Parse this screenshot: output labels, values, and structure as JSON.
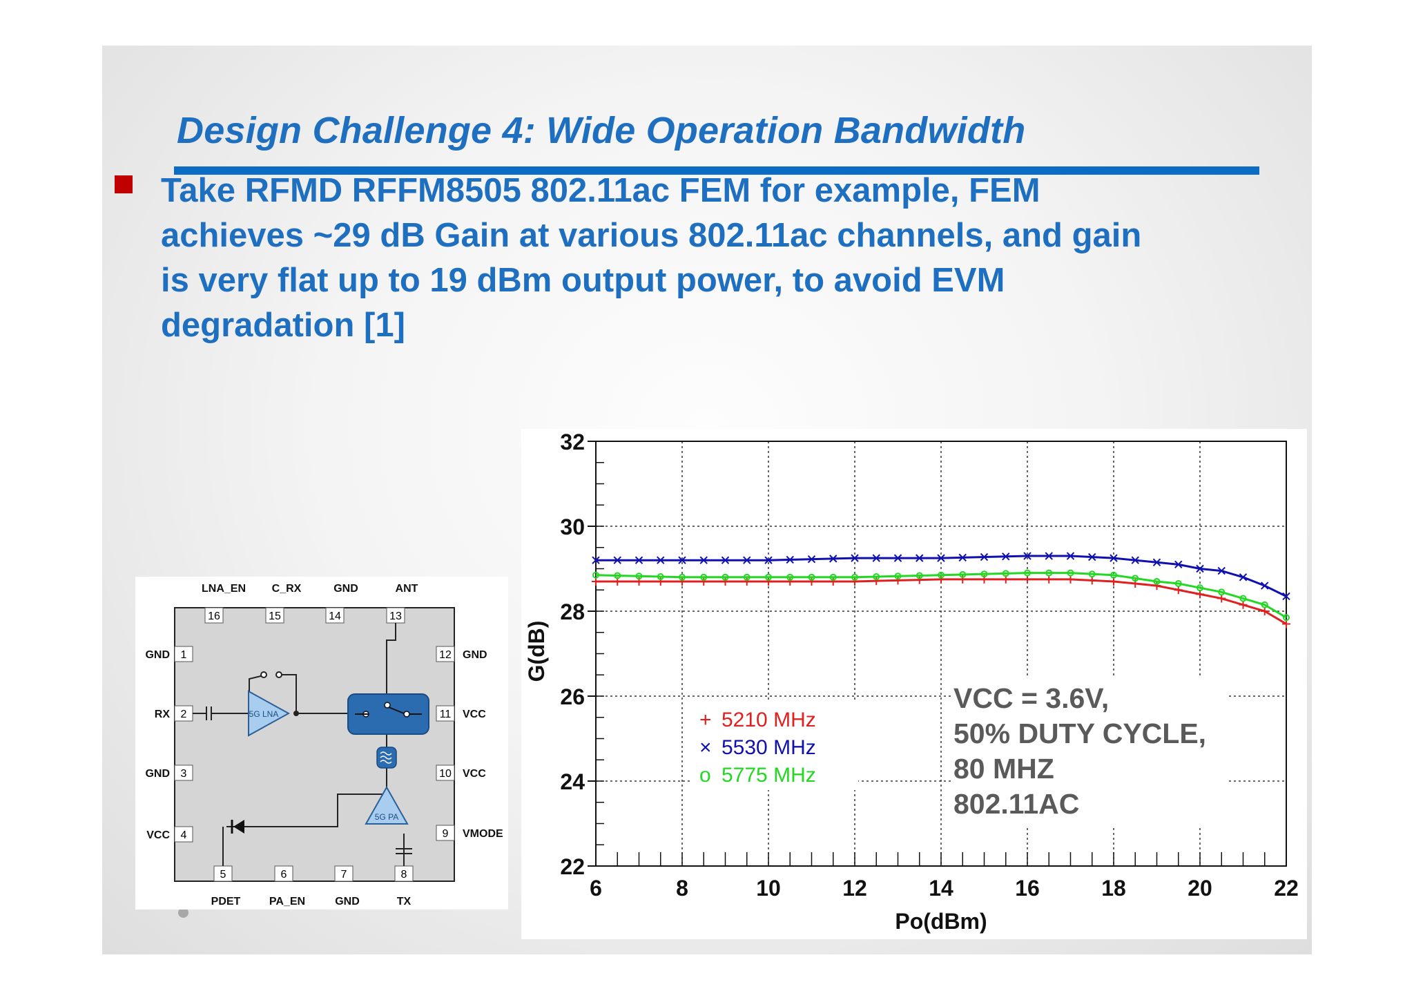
{
  "slide": {
    "title": "Design Challenge 4: Wide Operation Bandwidth",
    "bullet": "Take RFMD RFFM8505 802.11ac FEM for example, FEM achieves ~29 dB Gain at various 802.11ac channels, and gain is very flat up to 19 dBm output power, to avoid EVM degradation [1]"
  },
  "pinout": {
    "top_labels": [
      "LNA_EN",
      "C_RX",
      "GND",
      "ANT"
    ],
    "top_pins": [
      "16",
      "15",
      "14",
      "13"
    ],
    "left_labels": [
      "GND",
      "RX",
      "GND",
      "VCC"
    ],
    "left_pins": [
      "1",
      "2",
      "3",
      "4"
    ],
    "right_labels": [
      "GND",
      "VCC",
      "VCC",
      "VMODE"
    ],
    "right_pins": [
      "12",
      "11",
      "10",
      "9"
    ],
    "bottom_labels": [
      "PDET",
      "PA_EN",
      "GND",
      "TX"
    ],
    "bottom_pins": [
      "5",
      "6",
      "7",
      "8"
    ],
    "lna_label": "5G LNA",
    "pa_label": "5G PA",
    "colors": {
      "body": "#d5d5d5",
      "block": "#2b6cb0",
      "amp": "#a9cdee"
    }
  },
  "chart_data": {
    "type": "line",
    "xlabel": "Po(dBm)",
    "ylabel": "G(dB)",
    "xlim": [
      6,
      22
    ],
    "ylim": [
      22,
      32
    ],
    "xticks": [
      6,
      8,
      10,
      12,
      14,
      16,
      18,
      20,
      22
    ],
    "yticks": [
      22,
      24,
      26,
      28,
      30,
      32
    ],
    "grid": "dotted",
    "legend_position": "center-left",
    "annotation": [
      "VCC = 3.6V,",
      "50% DUTY CYCLE,",
      "80 MHZ",
      "802.11AC"
    ],
    "series": [
      {
        "name": "5210 MHz",
        "marker": "+",
        "color": "#e02020",
        "x": [
          6,
          8,
          10,
          12,
          14,
          16,
          17,
          18,
          19,
          19.5,
          20,
          20.5,
          21,
          21.5,
          22
        ],
        "y": [
          28.7,
          28.7,
          28.7,
          28.7,
          28.75,
          28.75,
          28.75,
          28.7,
          28.6,
          28.5,
          28.4,
          28.3,
          28.15,
          28.0,
          27.7
        ]
      },
      {
        "name": "5530 MHz",
        "marker": "×",
        "color": "#1010b0",
        "x": [
          6,
          8,
          10,
          12,
          14,
          16,
          17,
          18,
          19,
          19.5,
          20,
          20.5,
          21,
          21.5,
          22
        ],
        "y": [
          29.2,
          29.2,
          29.2,
          29.25,
          29.25,
          29.3,
          29.3,
          29.25,
          29.15,
          29.1,
          29.0,
          28.95,
          28.8,
          28.6,
          28.35
        ]
      },
      {
        "name": "5775 MHz",
        "marker": "o",
        "color": "#22d822",
        "x": [
          6,
          8,
          10,
          12,
          14,
          16,
          17,
          18,
          19,
          19.5,
          20,
          20.5,
          21,
          21.5,
          22
        ],
        "y": [
          28.85,
          28.8,
          28.8,
          28.8,
          28.85,
          28.9,
          28.9,
          28.85,
          28.7,
          28.65,
          28.55,
          28.45,
          28.3,
          28.15,
          27.85
        ]
      }
    ]
  }
}
